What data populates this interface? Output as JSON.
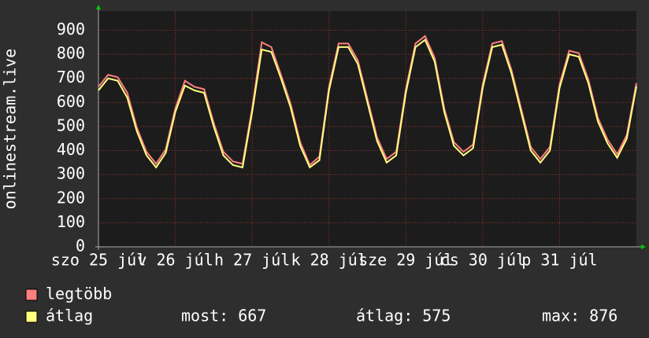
{
  "chart_data": {
    "type": "line",
    "y_label": "onlinestream.live",
    "x": [
      0,
      3,
      6,
      9,
      12,
      15,
      18,
      21,
      24,
      27,
      30,
      33,
      36,
      39,
      42,
      45,
      48,
      51,
      54,
      57,
      60,
      63,
      66,
      69,
      72,
      75,
      78,
      81,
      84,
      87,
      90,
      93,
      96,
      99,
      102,
      105,
      108,
      111,
      114,
      117,
      120,
      123,
      126,
      129,
      132,
      135,
      138,
      141,
      144,
      147,
      150,
      153,
      156,
      159,
      162,
      165,
      168
    ],
    "series": [
      {
        "name": "legtöbb",
        "color": "#ff7f7f",
        "values": [
          665,
          715,
          705,
          640,
          495,
          395,
          345,
          405,
          575,
          690,
          665,
          655,
          515,
          395,
          355,
          345,
          575,
          850,
          830,
          715,
          595,
          435,
          340,
          375,
          665,
          845,
          845,
          775,
          615,
          455,
          365,
          395,
          655,
          845,
          876,
          785,
          575,
          435,
          395,
          425,
          675,
          845,
          855,
          735,
          575,
          415,
          365,
          415,
          675,
          815,
          805,
          695,
          535,
          445,
          385,
          465,
          680
        ]
      },
      {
        "name": "átlag",
        "color": "#ffff80",
        "values": [
          650,
          700,
          690,
          620,
          480,
          380,
          330,
          390,
          560,
          670,
          650,
          640,
          500,
          380,
          340,
          330,
          560,
          820,
          810,
          700,
          580,
          420,
          330,
          360,
          650,
          830,
          830,
          760,
          600,
          440,
          350,
          380,
          640,
          830,
          860,
          770,
          560,
          420,
          380,
          410,
          660,
          830,
          840,
          720,
          560,
          400,
          350,
          400,
          660,
          800,
          790,
          680,
          520,
          430,
          370,
          450,
          667
        ]
      }
    ],
    "xlim": [
      0,
      168
    ],
    "xticks": [
      {
        "value": 0,
        "label": "szo 25 júl"
      },
      {
        "value": 24,
        "label": "v 26 júl"
      },
      {
        "value": 48,
        "label": "h 27 júl"
      },
      {
        "value": 72,
        "label": "k 28 júl"
      },
      {
        "value": 96,
        "label": "sze 29 júl"
      },
      {
        "value": 120,
        "label": "cs 30 júl"
      },
      {
        "value": 144,
        "label": "p 31 júl"
      }
    ],
    "ylim": [
      0,
      980
    ],
    "yticks": [
      0,
      100,
      200,
      300,
      400,
      500,
      600,
      700,
      800,
      900
    ],
    "grid": true,
    "stats": [
      {
        "label": "most:",
        "value": 667
      },
      {
        "label": "átlag:",
        "value": 575
      },
      {
        "label": "max:",
        "value": 876
      }
    ]
  }
}
